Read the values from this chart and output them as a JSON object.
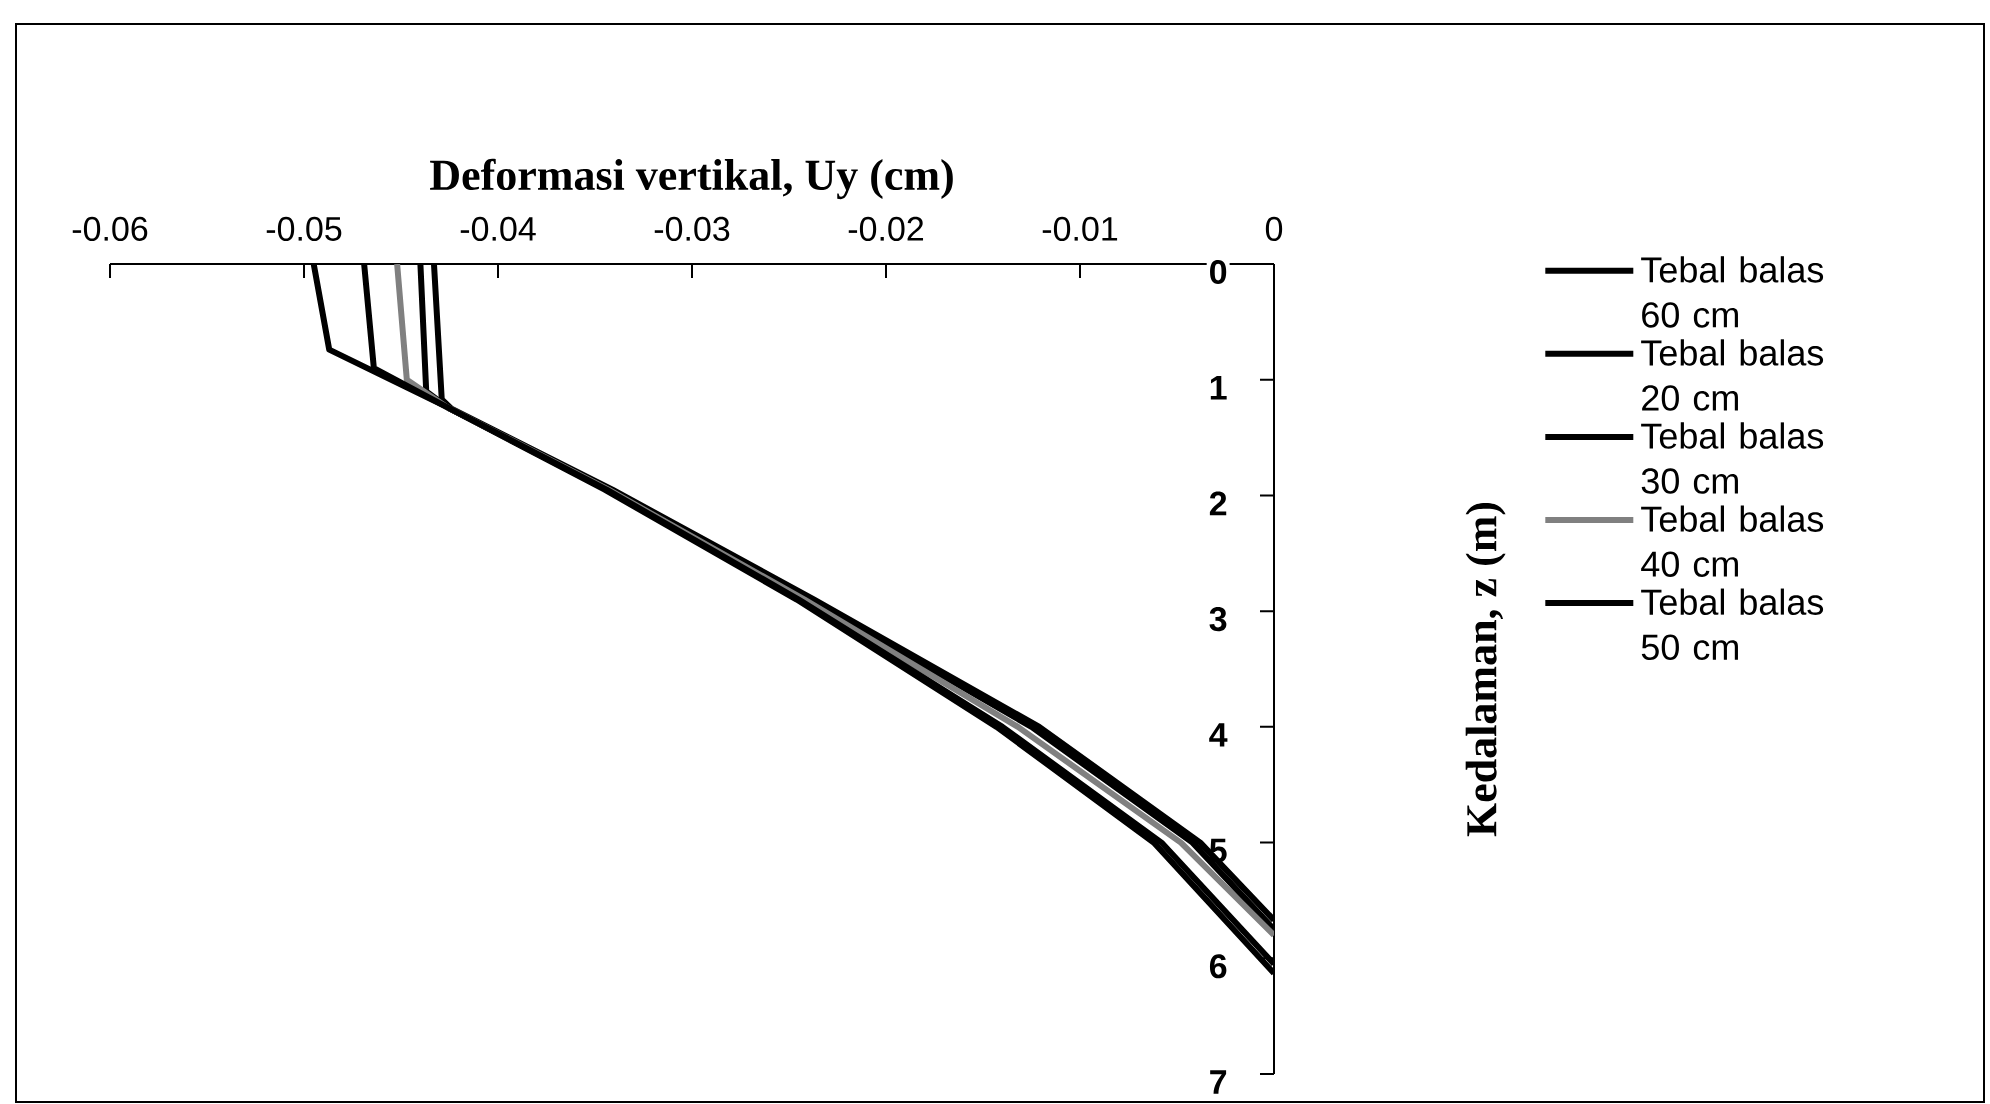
{
  "chart_data": {
    "type": "line",
    "xlabel": "Deformasi vertikal, Uy (cm)",
    "ylabel": "Kedalaman, z (m)",
    "xlim": [
      -0.06,
      0
    ],
    "ylim": [
      7,
      0
    ],
    "xticks": [
      -0.06,
      -0.05,
      -0.04,
      -0.03,
      -0.02,
      -0.01,
      0
    ],
    "yticks": [
      0,
      1,
      2,
      3,
      4,
      5,
      6,
      7
    ],
    "legend": "right",
    "series": [
      {
        "name": "Tebal balas 60 cm",
        "color": "#000000",
        "x": [
          -0.0495,
          -0.0487,
          -0.0427,
          -0.0345,
          -0.0246,
          -0.0143,
          -0.0062,
          0
        ],
        "values": [
          0,
          0.74,
          1.23,
          1.95,
          2.9,
          4,
          5,
          6.13
        ]
      },
      {
        "name": "Tebal balas 20 cm",
        "color": "#000000",
        "x": [
          -0.0433,
          -0.0429,
          -0.0424,
          -0.0341,
          -0.0237,
          -0.0121,
          -0.0038,
          0
        ],
        "values": [
          0,
          1.17,
          1.25,
          1.95,
          2.9,
          4,
          5,
          5.67
        ]
      },
      {
        "name": "Tebal balas 30 cm",
        "color": "#000000",
        "x": [
          -0.044,
          -0.0437,
          -0.0425,
          -0.0342,
          -0.0239,
          -0.0125,
          -0.0042,
          0
        ],
        "values": [
          0,
          1.1,
          1.25,
          1.95,
          2.9,
          4,
          5,
          5.75
        ]
      },
      {
        "name": "Tebal balas 40 cm",
        "color": "#808080",
        "x": [
          -0.0452,
          -0.0447,
          -0.0427,
          -0.0343,
          -0.0242,
          -0.0132,
          -0.0048,
          0
        ],
        "values": [
          0,
          1.0,
          1.23,
          1.95,
          2.9,
          4,
          5,
          5.8
        ]
      },
      {
        "name": "Tebal balas 50 cm",
        "color": "#000000",
        "x": [
          -0.0469,
          -0.0464,
          -0.0427,
          -0.0344,
          -0.0245,
          -0.014,
          -0.0058,
          0
        ],
        "values": [
          0,
          0.9,
          1.23,
          1.95,
          2.9,
          4,
          5,
          6.05
        ]
      }
    ]
  }
}
